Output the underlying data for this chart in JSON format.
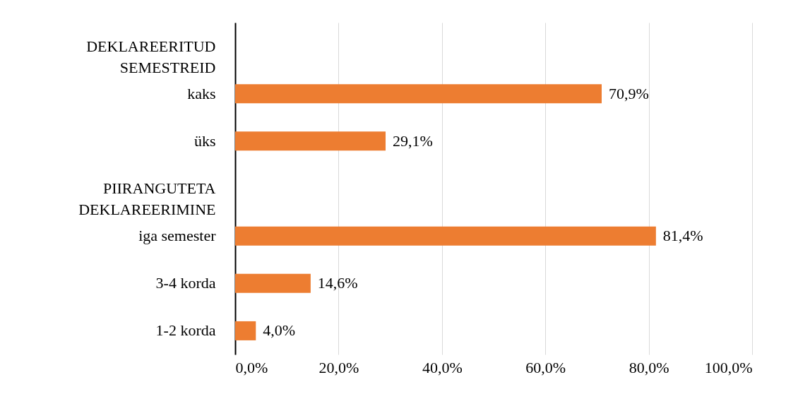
{
  "chart_data": {
    "type": "bar",
    "orientation": "horizontal",
    "categories": [
      "DEKLAREERITUD SEMESTREID",
      "kaks",
      "üks",
      "PIIRANGUTETA DEKLAREERIMINE",
      "iga semester",
      "3-4 korda",
      "1-2 korda"
    ],
    "values": [
      null,
      70.9,
      29.1,
      null,
      81.4,
      14.6,
      4.0
    ],
    "value_labels": [
      null,
      "70,9%",
      "29,1%",
      null,
      "81,4%",
      "14,6%",
      "4,0%"
    ],
    "color": "#ed7d31",
    "xlim": [
      0,
      100
    ],
    "xticks": [
      {
        "value": 0,
        "label": "0,0%"
      },
      {
        "value": 20,
        "label": "20,0%"
      },
      {
        "value": 40,
        "label": "40,0%"
      },
      {
        "value": 60,
        "label": "60,0%"
      },
      {
        "value": 80,
        "label": "80,0%"
      },
      {
        "value": 100,
        "label": "100,0%"
      }
    ],
    "grid": "x"
  }
}
